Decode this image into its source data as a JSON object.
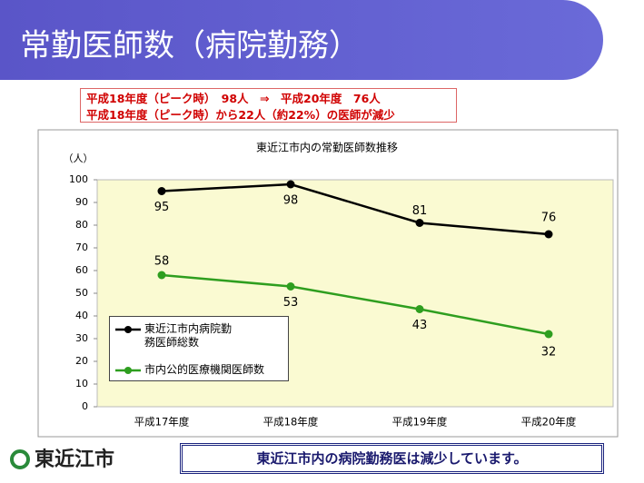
{
  "slide_title": "常勤医師数（病院勤務）",
  "callout": {
    "lines": [
      "平成18年度（ピーク時）　98人　⇒　平成20年度　76人",
      "平成18年度（ピーク時）から22人（約22%）の医師が減少"
    ]
  },
  "chart_data": {
    "type": "line",
    "title": "東近江市内の常勤医師数推移",
    "y_label": "（人）",
    "categories": [
      "平成17年度",
      "平成18年度",
      "平成19年度",
      "平成20年度"
    ],
    "series": [
      {
        "name": "東近江市内病院勤務医師総数",
        "color": "#000000",
        "values": [
          95,
          98,
          81,
          76
        ]
      },
      {
        "name": "市内公的医療機関医師数",
        "color": "#2e9e1f",
        "values": [
          58,
          53,
          43,
          32
        ]
      }
    ],
    "ylim": [
      0,
      100
    ],
    "yticks": [
      0,
      10,
      20,
      30,
      40,
      50,
      60,
      70,
      80,
      90,
      100
    ],
    "grid": false,
    "legend": "lower left"
  },
  "logo": "東近江市",
  "footer": "東近江市内の病院勤務医は減少しています。"
}
